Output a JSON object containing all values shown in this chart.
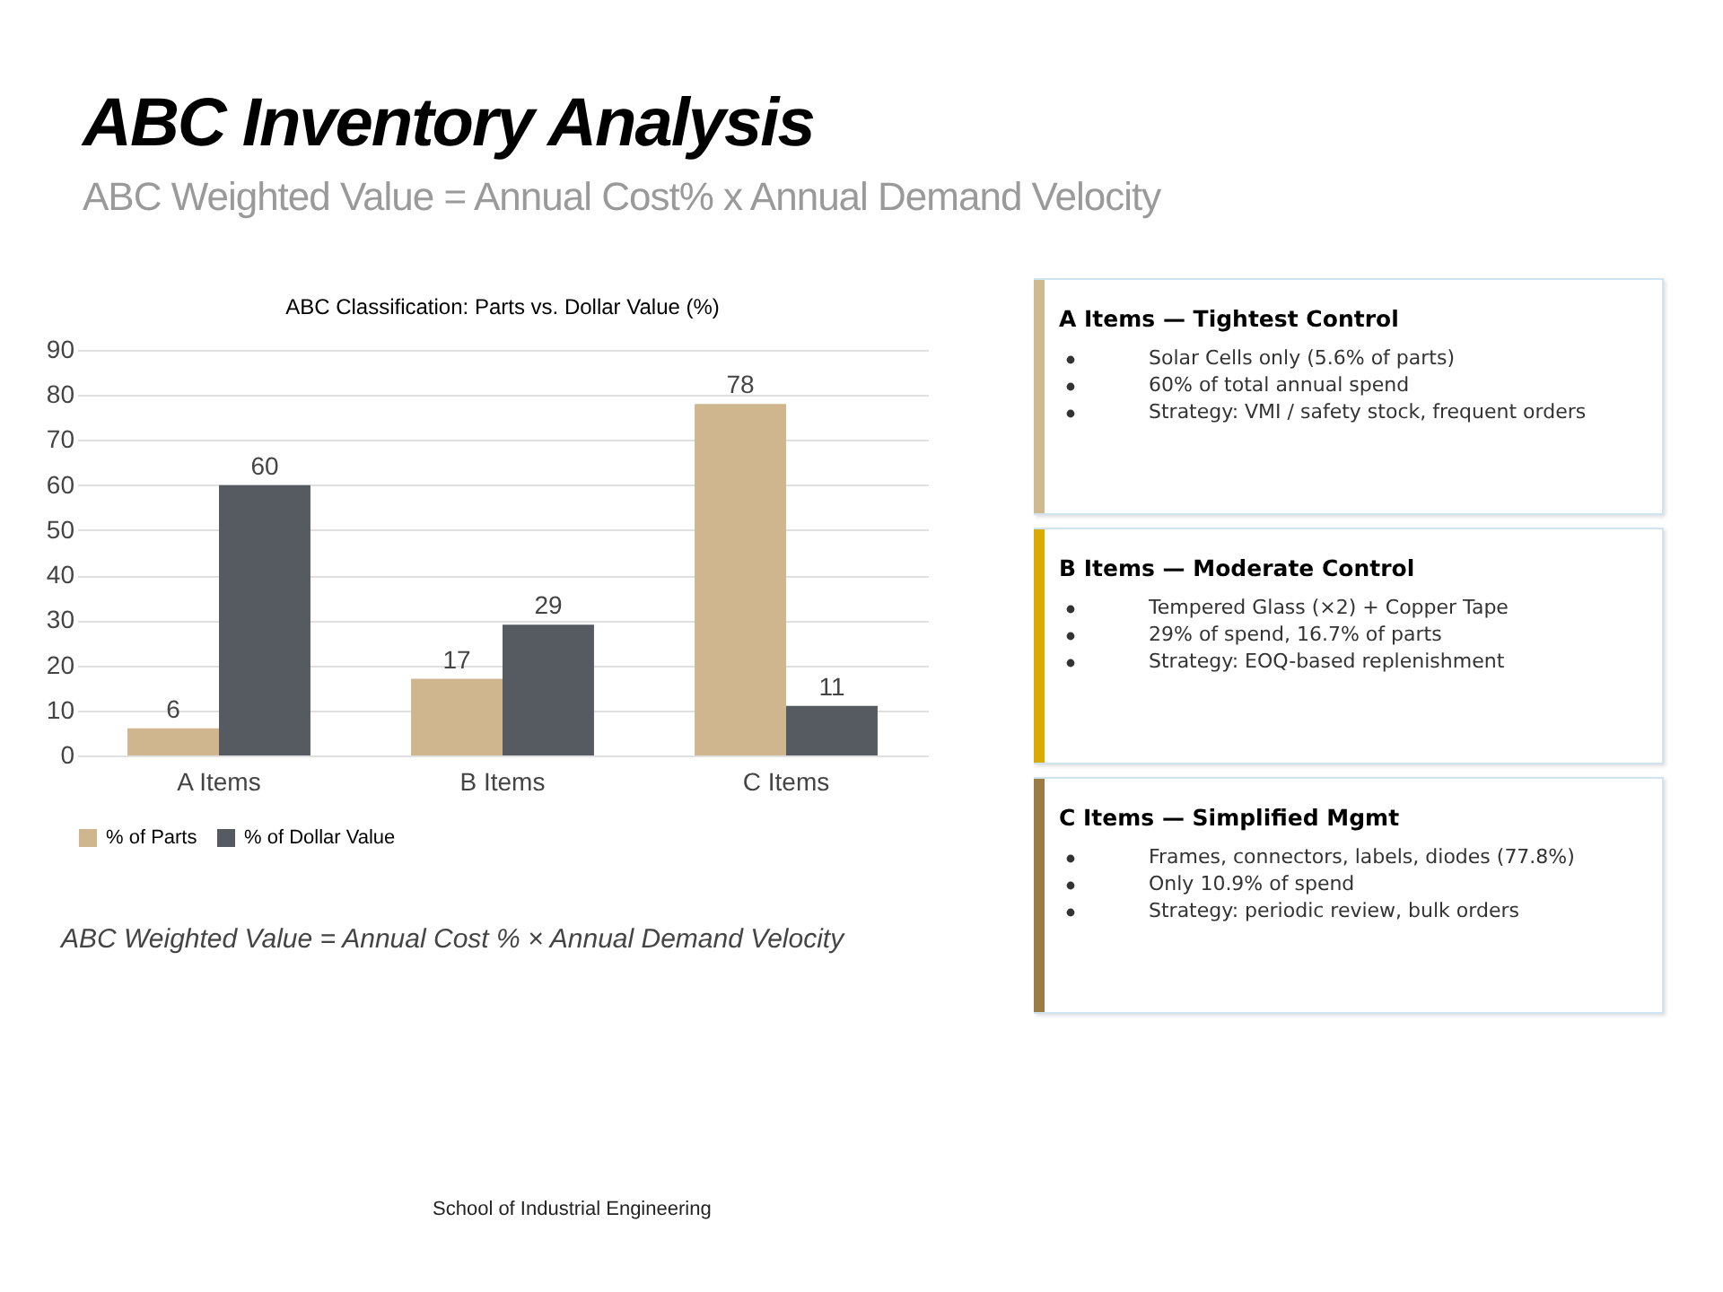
{
  "chart_data": [
    {
      "type": "other",
      "title": "ABC Inventory Analysis",
      "subtitle": "ABC Weighted Value = Annual Cost% x Annual Demand Velocity",
      "annotations": [
        "School of Industrial Engineering"
      ]
    },
    {
      "type": "bar",
      "title": "ABC Classification: Parts vs. Dollar Value (%)",
      "categories": [
        "A Items",
        "B Items",
        "C Items"
      ],
      "series": [
        {
          "name": "% of Parts",
          "color": "#cfb68f",
          "values": [
            6,
            17,
            78
          ]
        },
        {
          "name": "% of Dollar Value",
          "color": "#565a61",
          "values": [
            60,
            29,
            11
          ]
        }
      ],
      "ylim": [
        0,
        90
      ],
      "yticks": [
        0,
        10,
        20,
        30,
        40,
        50,
        60,
        70,
        80,
        90
      ],
      "grid": "y",
      "legend": "bottom",
      "data_labels": true,
      "annotations": [
        "ABC Weighted Value = Annual Cost % × Annual Demand Velocity"
      ]
    },
    {
      "type": "other",
      "title": "A Items — Tightest Control",
      "color": "#cfb991",
      "annotations": [
        "Solar Cells only (5.6% of parts)",
        "60% of total annual spend",
        "Strategy: VMI / safety stock, frequent orders"
      ]
    },
    {
      "type": "other",
      "title": "B Items — Moderate Control",
      "color": "#daaa00",
      "annotations": [
        "Tempered Glass (×2) + Copper Tape",
        "29% of spend, 16.7% of parts",
        "Strategy: EOQ-based replenishment"
      ]
    },
    {
      "type": "other",
      "title": "C Items — Simplified Mgmt",
      "color": "#9d7b45",
      "annotations": [
        "Frames, connectors, labels, diodes (77.8%)",
        "Only 10.9% of spend",
        "Strategy: periodic review, bulk orders"
      ]
    }
  ]
}
